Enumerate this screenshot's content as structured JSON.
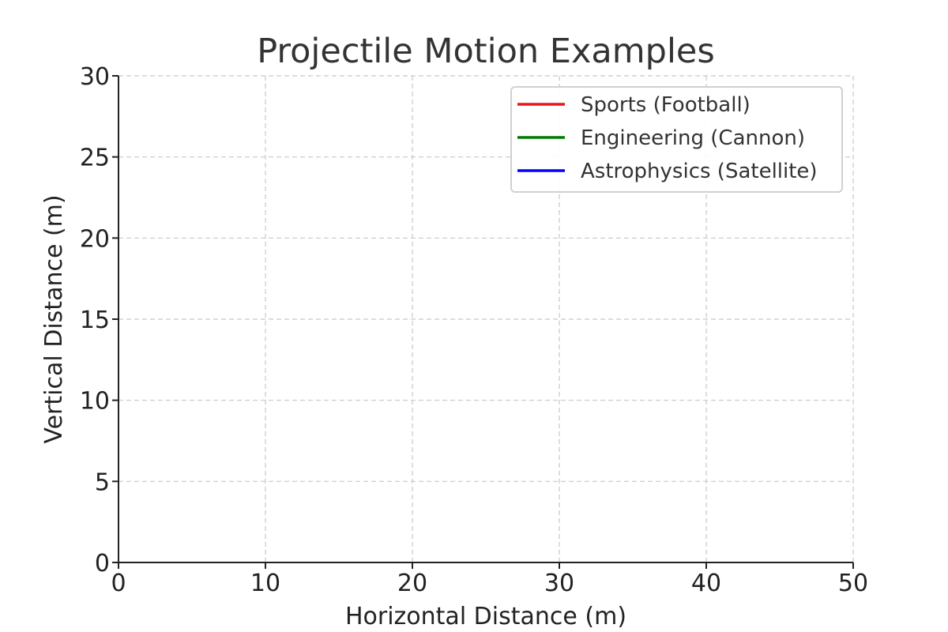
{
  "chart_data": {
    "type": "line",
    "title": "Projectile Motion Examples",
    "xlabel": "Horizontal Distance (m)",
    "ylabel": "Vertical Distance (m)",
    "xlim": [
      0,
      50
    ],
    "ylim": [
      0,
      30
    ],
    "xticks": [
      0,
      10,
      20,
      30,
      40,
      50
    ],
    "yticks": [
      0,
      5,
      10,
      15,
      20,
      25,
      30
    ],
    "grid": true,
    "legend_position": "top-right",
    "series": [
      {
        "name": "Sports (Football)",
        "color": "#e41a1c",
        "x": [],
        "y": []
      },
      {
        "name": "Engineering (Cannon)",
        "color": "#007a00",
        "x": [],
        "y": []
      },
      {
        "name": "Astrophysics (Satellite)",
        "color": "#0000ff",
        "x": [],
        "y": []
      }
    ]
  }
}
